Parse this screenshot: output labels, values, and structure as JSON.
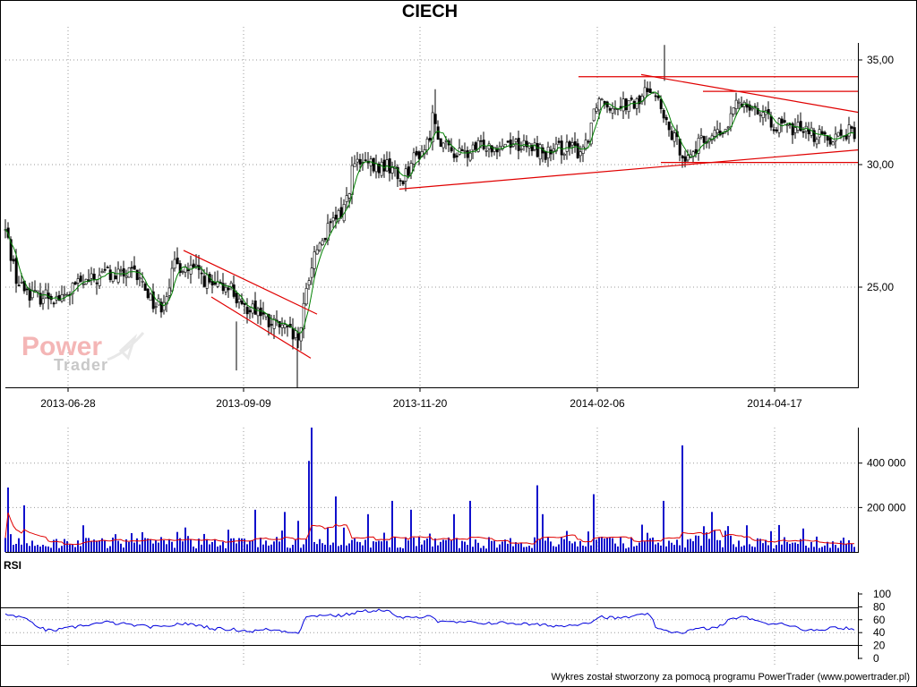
{
  "chart_data": [
    {
      "type": "candlestick",
      "title": "CIECH",
      "x_tick_labels": [
        "2013-06-28",
        "2013-09-09",
        "2013-11-20",
        "2014-02-06",
        "2014-04-17"
      ],
      "y_tick_labels": [
        "35,00",
        "30,00",
        "25,00"
      ],
      "y_ticks": [
        35,
        30,
        25
      ],
      "ylim": [
        20.8,
        36.0
      ],
      "series_anchors": {
        "name": "close (approx.)",
        "points": [
          [
            0,
            27.0
          ],
          [
            6,
            27.3
          ],
          [
            12,
            26.4
          ],
          [
            20,
            25.1
          ],
          [
            30,
            24.9
          ],
          [
            40,
            24.6
          ],
          [
            55,
            24.7
          ],
          [
            70,
            24.5
          ],
          [
            85,
            25.1
          ],
          [
            100,
            25.2
          ],
          [
            112,
            25.4
          ],
          [
            118,
            25.7
          ],
          [
            125,
            25.4
          ],
          [
            135,
            25.5
          ],
          [
            150,
            25.5
          ],
          [
            162,
            25.0
          ],
          [
            172,
            24.3
          ],
          [
            180,
            24.3
          ],
          [
            188,
            25.1
          ],
          [
            196,
            25.9
          ],
          [
            202,
            25.9
          ],
          [
            210,
            25.7
          ],
          [
            222,
            25.6
          ],
          [
            236,
            25.0
          ],
          [
            246,
            24.9
          ],
          [
            255,
            25.2
          ],
          [
            262,
            24.7
          ],
          [
            270,
            24.0
          ],
          [
            280,
            24.3
          ],
          [
            290,
            24.0
          ],
          [
            300,
            23.5
          ],
          [
            312,
            23.4
          ],
          [
            322,
            23.1
          ],
          [
            330,
            22.9
          ],
          [
            336,
            23.0
          ],
          [
            340,
            24.5
          ],
          [
            345,
            25.5
          ],
          [
            352,
            26.5
          ],
          [
            360,
            27.0
          ],
          [
            370,
            27.5
          ],
          [
            380,
            28.0
          ],
          [
            388,
            28.7
          ],
          [
            394,
            30.0
          ],
          [
            400,
            30.0
          ],
          [
            410,
            30.0
          ],
          [
            420,
            29.8
          ],
          [
            430,
            30.0
          ],
          [
            440,
            29.8
          ],
          [
            446,
            29.3
          ],
          [
            452,
            29.6
          ],
          [
            460,
            30.2
          ],
          [
            470,
            30.6
          ],
          [
            478,
            31.0
          ],
          [
            484,
            32.5
          ],
          [
            490,
            31.3
          ],
          [
            498,
            30.8
          ],
          [
            506,
            30.6
          ],
          [
            514,
            30.5
          ],
          [
            522,
            30.5
          ],
          [
            530,
            30.7
          ],
          [
            540,
            31.0
          ],
          [
            550,
            30.9
          ],
          [
            560,
            31.0
          ],
          [
            570,
            31.1
          ],
          [
            578,
            31.0
          ],
          [
            586,
            30.8
          ],
          [
            596,
            30.8
          ],
          [
            606,
            30.6
          ],
          [
            616,
            30.5
          ],
          [
            626,
            30.8
          ],
          [
            636,
            30.8
          ],
          [
            646,
            30.6
          ],
          [
            656,
            31.2
          ],
          [
            662,
            32.5
          ],
          [
            668,
            33.2
          ],
          [
            674,
            33.1
          ],
          [
            684,
            32.8
          ],
          [
            694,
            33.0
          ],
          [
            704,
            32.8
          ],
          [
            714,
            33.0
          ],
          [
            722,
            33.6
          ],
          [
            728,
            33.8
          ],
          [
            734,
            33.1
          ],
          [
            738,
            32.6
          ],
          [
            744,
            31.8
          ],
          [
            750,
            31.4
          ],
          [
            756,
            31.0
          ],
          [
            762,
            30.6
          ],
          [
            768,
            30.3
          ],
          [
            774,
            30.7
          ],
          [
            782,
            31.0
          ],
          [
            790,
            31.3
          ],
          [
            800,
            31.5
          ],
          [
            808,
            31.4
          ],
          [
            814,
            32.0
          ],
          [
            820,
            32.7
          ],
          [
            826,
            33.0
          ],
          [
            834,
            33.0
          ],
          [
            842,
            32.8
          ],
          [
            848,
            32.5
          ],
          [
            854,
            32.3
          ],
          [
            860,
            32.0
          ],
          [
            868,
            31.9
          ],
          [
            876,
            31.8
          ],
          [
            884,
            31.6
          ],
          [
            892,
            31.8
          ],
          [
            900,
            31.9
          ],
          [
            906,
            31.5
          ],
          [
            912,
            31.3
          ],
          [
            918,
            31.4
          ],
          [
            926,
            31.3
          ],
          [
            934,
            31.4
          ],
          [
            942,
            31.5
          ],
          [
            950,
            31.6
          ],
          [
            956,
            31.3
          ]
        ]
      },
      "trend_lines": [
        {
          "kind": "falling-channel-upper",
          "from": [
            205,
            26.5
          ],
          "to": [
            354,
            23.9
          ]
        },
        {
          "kind": "falling-channel-lower",
          "from": [
            236,
            24.6
          ],
          "to": [
            347,
            22.1
          ]
        },
        {
          "kind": "rising-support",
          "from": [
            446,
            29.0
          ],
          "to": [
            958,
            30.7
          ]
        },
        {
          "kind": "resistance",
          "from": [
            646,
            34.2
          ],
          "to": [
            958,
            34.2
          ]
        },
        {
          "kind": "resistance",
          "from": [
            785,
            33.5
          ],
          "to": [
            958,
            33.5
          ]
        },
        {
          "kind": "falling-resistance",
          "from": [
            716,
            34.3
          ],
          "to": [
            958,
            32.5
          ]
        },
        {
          "kind": "support",
          "from": [
            738,
            30.1
          ],
          "to": [
            958,
            30.1
          ]
        }
      ]
    },
    {
      "type": "bar",
      "name": "volume",
      "y_tick_labels": [
        "400 000",
        "200 000"
      ],
      "y_ticks": [
        400000,
        200000
      ],
      "ylim": [
        0,
        560000
      ],
      "bar_color": "#1010cc",
      "avg_color": "#e00000",
      "spikes": [
        [
          10,
          290000
        ],
        [
          26,
          210000
        ],
        [
          94,
          120000
        ],
        [
          130,
          80000
        ],
        [
          206,
          110000
        ],
        [
          256,
          100000
        ],
        [
          284,
          190000
        ],
        [
          318,
          180000
        ],
        [
          332,
          140000
        ],
        [
          344,
          410000
        ],
        [
          347,
          560000
        ],
        [
          376,
          250000
        ],
        [
          410,
          170000
        ],
        [
          438,
          230000
        ],
        [
          460,
          190000
        ],
        [
          506,
          170000
        ],
        [
          524,
          230000
        ],
        [
          600,
          300000
        ],
        [
          606,
          170000
        ],
        [
          662,
          260000
        ],
        [
          740,
          230000
        ],
        [
          762,
          480000
        ],
        [
          796,
          180000
        ],
        [
          834,
          120000
        ],
        [
          956,
          150000
        ]
      ]
    },
    {
      "type": "line",
      "name": "RSI",
      "y_tick_labels": [
        "100",
        "80",
        "60",
        "40",
        "20",
        "0"
      ],
      "y_ticks": [
        100,
        80,
        60,
        40,
        20,
        0
      ],
      "ylim": [
        0,
        100
      ],
      "reference_lines": [
        80,
        20
      ],
      "line_color": "#0000dd",
      "anchors": [
        [
          6,
          67
        ],
        [
          20,
          66
        ],
        [
          36,
          55
        ],
        [
          52,
          43
        ],
        [
          70,
          45
        ],
        [
          95,
          52
        ],
        [
          120,
          56
        ],
        [
          140,
          53
        ],
        [
          160,
          50
        ],
        [
          180,
          48
        ],
        [
          200,
          54
        ],
        [
          220,
          52
        ],
        [
          240,
          46
        ],
        [
          260,
          45
        ],
        [
          280,
          42
        ],
        [
          300,
          45
        ],
        [
          320,
          42
        ],
        [
          334,
          40
        ],
        [
          340,
          63
        ],
        [
          360,
          68
        ],
        [
          380,
          66
        ],
        [
          400,
          72
        ],
        [
          420,
          75
        ],
        [
          434,
          74
        ],
        [
          440,
          65
        ],
        [
          460,
          62
        ],
        [
          480,
          68
        ],
        [
          490,
          56
        ],
        [
          510,
          56
        ],
        [
          540,
          55
        ],
        [
          570,
          55
        ],
        [
          600,
          52
        ],
        [
          630,
          50
        ],
        [
          660,
          57
        ],
        [
          670,
          65
        ],
        [
          690,
          62
        ],
        [
          710,
          66
        ],
        [
          726,
          68
        ],
        [
          734,
          44
        ],
        [
          760,
          40
        ],
        [
          780,
          46
        ],
        [
          800,
          47
        ],
        [
          820,
          64
        ],
        [
          840,
          62
        ],
        [
          856,
          52
        ],
        [
          870,
          56
        ],
        [
          890,
          48
        ],
        [
          910,
          42
        ],
        [
          930,
          49
        ],
        [
          950,
          46
        ],
        [
          956,
          42
        ]
      ]
    }
  ],
  "footer": "Wykres został stworzony za pomocą programu PowerTrader (www.powertrader.pl)",
  "watermark": {
    "line1": "Power",
    "line2": "Trader"
  },
  "colors": {
    "candle": "#000000",
    "moving_average": "#008000",
    "trend_line": "#e00000",
    "volume_bar": "#1010cc",
    "rsi_line": "#0000dd"
  }
}
